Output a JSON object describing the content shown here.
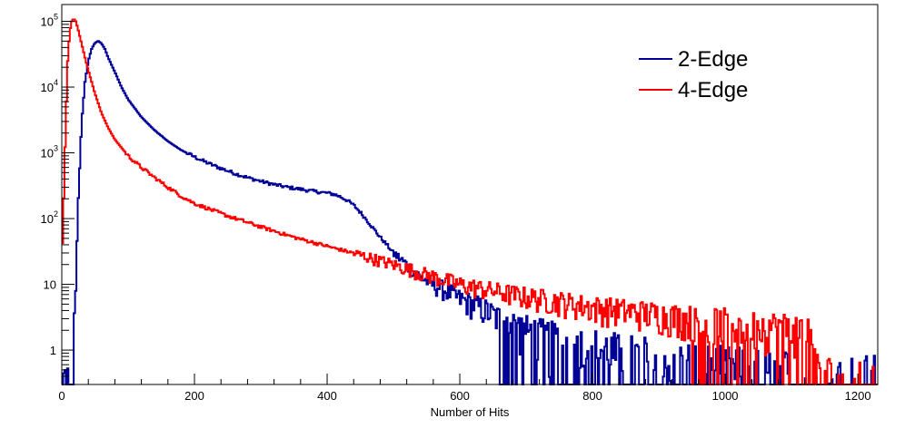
{
  "chart_data": {
    "type": "line",
    "title": "",
    "xlabel": "Number of Hits",
    "ylabel": "",
    "xlim": [
      0,
      1230
    ],
    "ylim": [
      0.3,
      180000
    ],
    "y_scale": "log",
    "x_ticks": [
      "0",
      "200",
      "400",
      "600",
      "800",
      "1000",
      "1200"
    ],
    "y_ticks": [
      {
        "base": "1",
        "exp": ""
      },
      {
        "base": "10",
        "exp": ""
      },
      {
        "base": "10",
        "exp": "2"
      },
      {
        "base": "10",
        "exp": "3"
      },
      {
        "base": "10",
        "exp": "4"
      },
      {
        "base": "10",
        "exp": "5"
      }
    ],
    "legend_position": "top-right",
    "grid": false,
    "series": [
      {
        "name": "2-Edge",
        "color": "#000099",
        "x": [
          0,
          10,
          16,
          20,
          25,
          30,
          35,
          40,
          45,
          50,
          55,
          60,
          65,
          70,
          80,
          90,
          100,
          120,
          140,
          160,
          180,
          200,
          220,
          240,
          260,
          280,
          300,
          320,
          340,
          360,
          380,
          400,
          410,
          420,
          430,
          440,
          450,
          460,
          470,
          480,
          490,
          500,
          520,
          540,
          560,
          580,
          600,
          620,
          640,
          660,
          680,
          700,
          740,
          780,
          820,
          860,
          900,
          940,
          980,
          1020,
          1060,
          1100,
          1140,
          1180,
          1220
        ],
        "y": [
          0.3,
          0.3,
          0.3,
          5,
          200,
          3000,
          12000,
          25000,
          38000,
          47000,
          50000,
          46000,
          38000,
          28000,
          17000,
          10000,
          6500,
          3500,
          2200,
          1500,
          1100,
          870,
          700,
          580,
          490,
          420,
          370,
          330,
          300,
          280,
          260,
          245,
          235,
          215,
          190,
          160,
          125,
          95,
          70,
          52,
          40,
          30,
          20,
          13,
          10,
          8,
          6,
          5,
          4,
          3,
          2.5,
          2,
          1.5,
          1.2,
          1,
          0.8,
          0.7,
          0.6,
          0.5,
          0.45,
          0.4,
          0.4,
          0.35,
          0.35,
          0.3
        ]
      },
      {
        "name": "4-Edge",
        "color": "#ff0000",
        "x": [
          0,
          3,
          6,
          9,
          12,
          15,
          18,
          21,
          24,
          27,
          30,
          35,
          40,
          50,
          60,
          70,
          80,
          100,
          120,
          140,
          160,
          180,
          200,
          250,
          300,
          350,
          400,
          450,
          500,
          550,
          600,
          650,
          700,
          750,
          800,
          850,
          900,
          950,
          1000,
          1050,
          1100,
          1130,
          1140,
          1230
        ],
        "y": [
          20,
          200,
          3000,
          25000,
          70000,
          100000,
          110000,
          100000,
          80000,
          60000,
          45000,
          28000,
          18000,
          8000,
          4000,
          2400,
          1600,
          900,
          600,
          420,
          300,
          220,
          170,
          110,
          75,
          52,
          38,
          28,
          20,
          14,
          10,
          8,
          6.5,
          5.5,
          4.5,
          4,
          3.5,
          3,
          2.7,
          2.4,
          2.2,
          2,
          0.3,
          0.3
        ]
      }
    ]
  }
}
